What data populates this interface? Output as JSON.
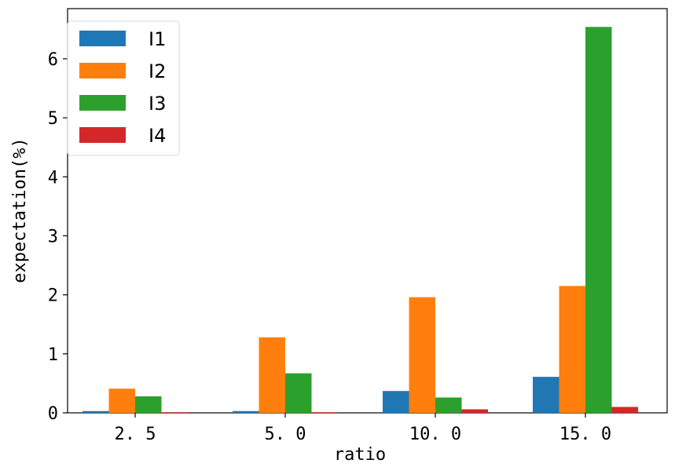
{
  "chart_data": {
    "type": "bar",
    "categories": [
      "2.5",
      "5.0",
      "10.0",
      "15.0"
    ],
    "series": [
      {
        "name": "I1",
        "color": "#1f77b4",
        "values": [
          0.03,
          0.03,
          0.37,
          0.61
        ]
      },
      {
        "name": "I2",
        "color": "#ff7f0e",
        "values": [
          0.41,
          1.28,
          1.96,
          2.15
        ]
      },
      {
        "name": "I3",
        "color": "#2ca02c",
        "values": [
          0.28,
          0.67,
          0.26,
          6.54
        ]
      },
      {
        "name": "I4",
        "color": "#d62728",
        "values": [
          0.01,
          0.01,
          0.06,
          0.1
        ]
      }
    ],
    "title": "",
    "xlabel": "ratio",
    "ylabel": "expectation(%)",
    "ylim": [
      0,
      6.85
    ],
    "yticks": [
      0,
      1,
      2,
      3,
      4,
      5,
      6
    ],
    "xtick_labels": [
      "2. 5",
      "5. 0",
      "10. 0",
      "15. 0"
    ],
    "legend_position": "upper-left",
    "grid": false
  }
}
